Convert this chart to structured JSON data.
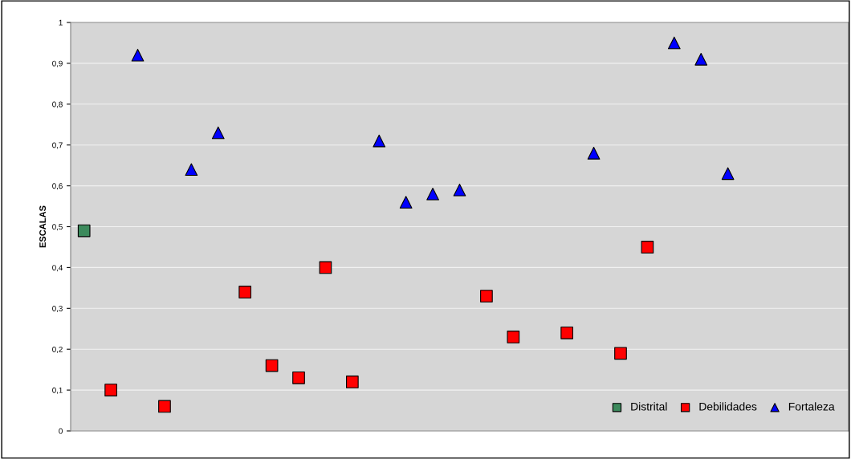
{
  "chart_data": {
    "type": "scatter",
    "ylabel": "ESCALAS",
    "categories": [
      null,
      null,
      null,
      null,
      null,
      null,
      null,
      null,
      null,
      null,
      null,
      null,
      null,
      null,
      null,
      null,
      null,
      null,
      null,
      null,
      null,
      null,
      null,
      null,
      null,
      null,
      null,
      null,
      null
    ],
    "series": [
      {
        "name": "Distrital",
        "color": "#3c8a5c",
        "marker": "square",
        "values": [
          0.49,
          null,
          null,
          null,
          null,
          null,
          null,
          null,
          null,
          null,
          null,
          null,
          null,
          null,
          null,
          null,
          null,
          null,
          null,
          null,
          null,
          null,
          null,
          null,
          null,
          null,
          null,
          null,
          null
        ]
      },
      {
        "name": "Debilidades",
        "color": "#ff0000",
        "marker": "square",
        "values": [
          null,
          0.1,
          null,
          0.06,
          null,
          null,
          0.34,
          0.16,
          0.13,
          0.4,
          0.12,
          null,
          null,
          null,
          null,
          0.33,
          0.23,
          null,
          0.24,
          null,
          0.19,
          0.45,
          null,
          null,
          null,
          null,
          null,
          null,
          null
        ]
      },
      {
        "name": "Fortaleza",
        "color": "#0000ff",
        "marker": "triangle",
        "values": [
          null,
          null,
          0.92,
          null,
          0.64,
          0.73,
          null,
          null,
          null,
          null,
          null,
          0.71,
          0.56,
          0.58,
          0.59,
          null,
          null,
          null,
          null,
          0.68,
          null,
          null,
          0.95,
          0.91,
          0.63,
          null,
          null,
          null,
          null
        ]
      }
    ],
    "ylim": [
      0,
      1
    ],
    "yticks": [
      0,
      {
        "value": 0.1,
        "label": "0,1"
      },
      {
        "value": 0.2,
        "label": "0,2"
      },
      {
        "value": 0.3,
        "label": "0,3"
      },
      {
        "value": 0.4,
        "label": "0,4"
      },
      {
        "value": 0.5,
        "label": "0,5"
      },
      {
        "value": 0.6,
        "label": "0,6"
      },
      {
        "value": 0.7,
        "label": "0,7"
      },
      {
        "value": 0.8,
        "label": "0,8"
      },
      {
        "value": 0.9,
        "label": "0,9"
      },
      1
    ],
    "grid": "y",
    "legend": "bottom right",
    "tick_labels": "y"
  }
}
